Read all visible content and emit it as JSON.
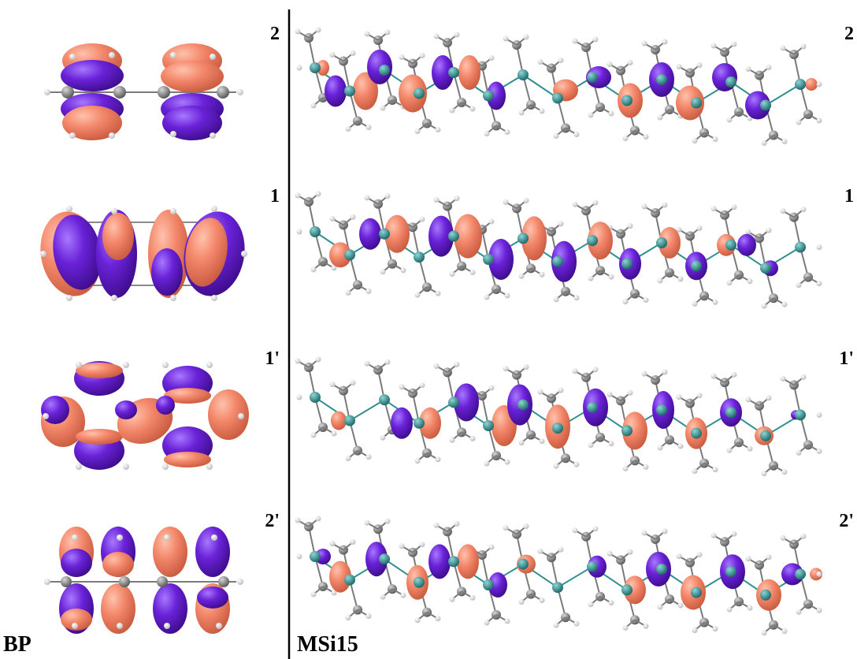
{
  "labels": {
    "bp": "BP",
    "msi": "MSi15",
    "orbital_left": [
      "2",
      "1",
      "1'",
      "2'"
    ],
    "orbital_right": [
      "2",
      "1",
      "1'",
      "2'"
    ]
  },
  "colors": {
    "phase_positive": "#f08060",
    "phase_negative": "#6a1fd0",
    "carbon": "#8a8a8a",
    "silicon": "#2f8f8f",
    "hydrogen": "#f2f2f2",
    "bond": "#7a7a7a",
    "divider": "#000000"
  }
}
